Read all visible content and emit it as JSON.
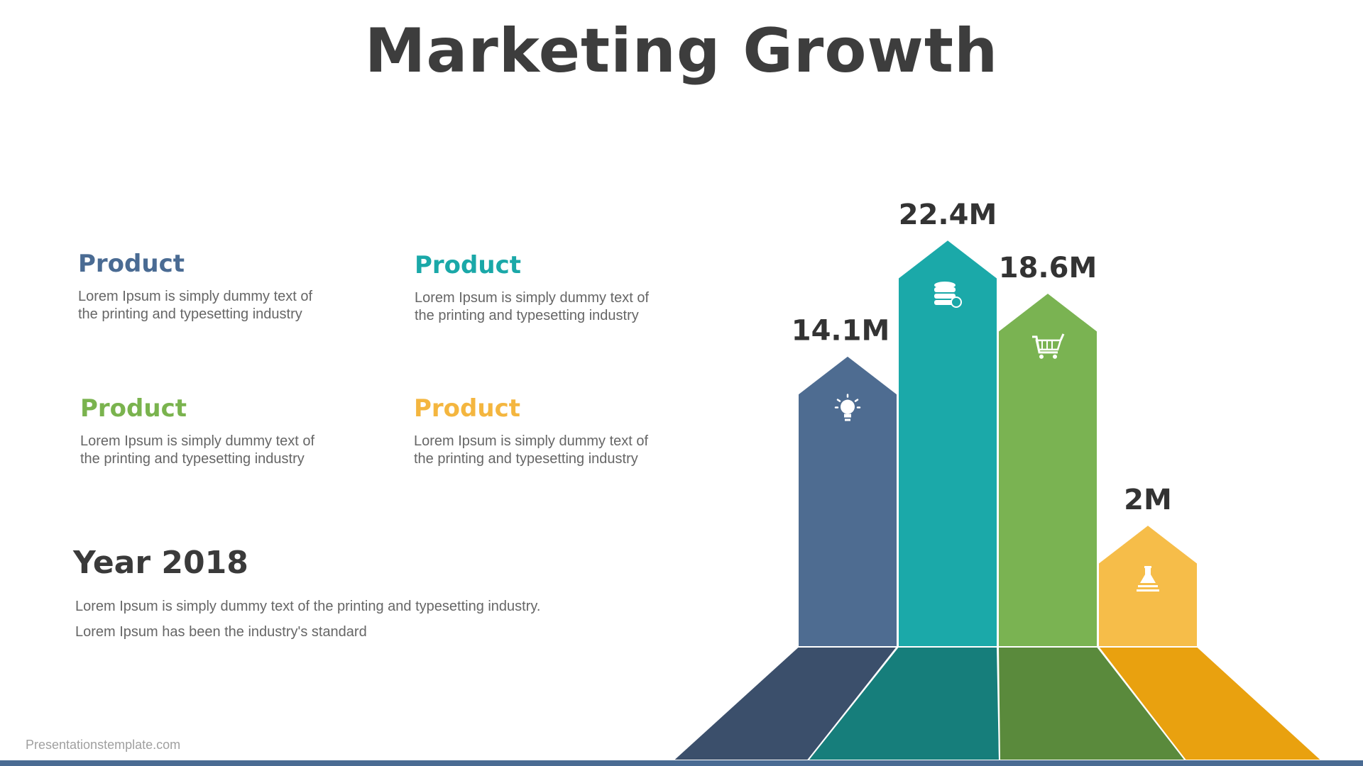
{
  "title": "Marketing Growth",
  "cards": [
    {
      "title": "Product",
      "line1": "Lorem Ipsum is simply dummy text of",
      "line2": "the printing and typesetting industry",
      "color": "#4a6b93"
    },
    {
      "title": "Product",
      "line1": "Lorem Ipsum is simply dummy text of",
      "line2": "the printing and typesetting industry",
      "color": "#1aa8a8"
    },
    {
      "title": "Product",
      "line1": "Lorem Ipsum is simply dummy text of",
      "line2": "the printing and typesetting industry",
      "color": "#7ab34e"
    },
    {
      "title": "Product",
      "line1": "Lorem Ipsum is simply dummy text of",
      "line2": "the printing and typesetting industry",
      "color": "#f4b63f"
    }
  ],
  "year": {
    "title": "Year 2018",
    "line1": "Lorem Ipsum is simply dummy text of the printing and typesetting industry.",
    "line2": "Lorem Ipsum has been the industry's standard"
  },
  "footer": "Presentationstemplate.com",
  "bottom_bar_color": "#4a6b93",
  "chart_data": {
    "type": "bar",
    "categories": [
      "",
      "",
      "",
      ""
    ],
    "values": [
      14.1,
      22.4,
      18.6,
      2
    ],
    "labels": [
      "14.1M",
      "22.4M",
      "18.6M",
      "2M"
    ],
    "colors": [
      "#4e6c91",
      "#1ba9a9",
      "#7ab352",
      "#f6bd49"
    ],
    "base_colors": [
      "#3b4f6b",
      "#167e7b",
      "#5a8a3c",
      "#e9a10f"
    ],
    "icons": [
      "lightbulb-icon",
      "database-cloud-icon",
      "shopping-cart-icon",
      "flask-icon"
    ],
    "title": "",
    "xlabel": "",
    "ylabel": ""
  }
}
